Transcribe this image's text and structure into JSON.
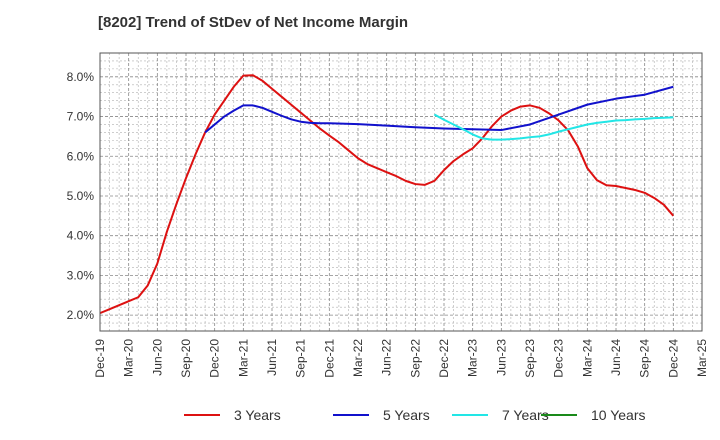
{
  "chart_data": {
    "type": "line",
    "title": "[8202]  Trend of StDev of Net Income Margin",
    "xlabel": "",
    "ylabel": "",
    "x_ticks": [
      "Dec-19",
      "Mar-20",
      "Jun-20",
      "Sep-20",
      "Dec-20",
      "Mar-21",
      "Jun-21",
      "Sep-21",
      "Dec-21",
      "Mar-22",
      "Jun-22",
      "Sep-22",
      "Dec-22",
      "Mar-23",
      "Jun-23",
      "Sep-23",
      "Dec-23",
      "Mar-24",
      "Jun-24",
      "Sep-24",
      "Dec-24",
      "Mar-25"
    ],
    "y_ticks": [
      "2.0%",
      "3.0%",
      "4.0%",
      "5.0%",
      "6.0%",
      "7.0%",
      "8.0%"
    ],
    "ylim": [
      1.6,
      8.6
    ],
    "grid": true,
    "legend_position": "bottom",
    "series": [
      {
        "name": "3 Years",
        "color": "#dd1111",
        "points": [
          [
            "Dec-19",
            2.05
          ],
          [
            "Jan-20",
            2.15
          ],
          [
            "Feb-20",
            2.25
          ],
          [
            "Mar-20",
            2.35
          ],
          [
            "Apr-20",
            2.45
          ],
          [
            "May-20",
            2.75
          ],
          [
            "Jun-20",
            3.3
          ],
          [
            "Jul-20",
            4.1
          ],
          [
            "Aug-20",
            4.8
          ],
          [
            "Sep-20",
            5.45
          ],
          [
            "Oct-20",
            6.05
          ],
          [
            "Nov-20",
            6.6
          ],
          [
            "Dec-20",
            7.05
          ],
          [
            "Jan-21",
            7.4
          ],
          [
            "Feb-21",
            7.75
          ],
          [
            "Mar-21",
            8.03
          ],
          [
            "Apr-21",
            8.04
          ],
          [
            "May-21",
            7.9
          ],
          [
            "Jun-21",
            7.7
          ],
          [
            "Jul-21",
            7.5
          ],
          [
            "Aug-21",
            7.3
          ],
          [
            "Sep-21",
            7.1
          ],
          [
            "Oct-21",
            6.9
          ],
          [
            "Nov-21",
            6.7
          ],
          [
            "Dec-21",
            6.52
          ],
          [
            "Jan-22",
            6.35
          ],
          [
            "Feb-22",
            6.15
          ],
          [
            "Mar-22",
            5.95
          ],
          [
            "Apr-22",
            5.8
          ],
          [
            "May-22",
            5.7
          ],
          [
            "Jun-22",
            5.6
          ],
          [
            "Jul-22",
            5.5
          ],
          [
            "Aug-22",
            5.38
          ],
          [
            "Sep-22",
            5.3
          ],
          [
            "Oct-22",
            5.28
          ],
          [
            "Nov-22",
            5.38
          ],
          [
            "Dec-22",
            5.65
          ],
          [
            "Jan-23",
            5.88
          ],
          [
            "Feb-23",
            6.05
          ],
          [
            "Mar-23",
            6.2
          ],
          [
            "Apr-23",
            6.45
          ],
          [
            "May-23",
            6.75
          ],
          [
            "Jun-23",
            7.0
          ],
          [
            "Jul-23",
            7.15
          ],
          [
            "Aug-23",
            7.25
          ],
          [
            "Sep-23",
            7.28
          ],
          [
            "Oct-23",
            7.22
          ],
          [
            "Nov-23",
            7.08
          ],
          [
            "Dec-23",
            6.9
          ],
          [
            "Jan-24",
            6.65
          ],
          [
            "Feb-24",
            6.25
          ],
          [
            "Mar-24",
            5.7
          ],
          [
            "Apr-24",
            5.4
          ],
          [
            "May-24",
            5.27
          ],
          [
            "Jun-24",
            5.25
          ],
          [
            "Jul-24",
            5.2
          ],
          [
            "Aug-24",
            5.15
          ],
          [
            "Sep-24",
            5.08
          ],
          [
            "Oct-24",
            4.95
          ],
          [
            "Nov-24",
            4.78
          ],
          [
            "Dec-24",
            4.5
          ]
        ]
      },
      {
        "name": "5 Years",
        "color": "#1111cc",
        "points": [
          [
            "Nov-20",
            6.6
          ],
          [
            "Dec-20",
            6.8
          ],
          [
            "Jan-21",
            7.0
          ],
          [
            "Feb-21",
            7.15
          ],
          [
            "Mar-21",
            7.28
          ],
          [
            "Apr-21",
            7.28
          ],
          [
            "May-21",
            7.22
          ],
          [
            "Jun-21",
            7.12
          ],
          [
            "Jul-21",
            7.02
          ],
          [
            "Aug-21",
            6.93
          ],
          [
            "Sep-21",
            6.87
          ],
          [
            "Oct-21",
            6.84
          ],
          [
            "Nov-21",
            6.83
          ],
          [
            "Dec-21",
            6.83
          ],
          [
            "Mar-22",
            6.81
          ],
          [
            "Jun-22",
            6.77
          ],
          [
            "Sep-22",
            6.73
          ],
          [
            "Dec-22",
            6.7
          ],
          [
            "Mar-23",
            6.68
          ],
          [
            "Jun-23",
            6.66
          ],
          [
            "Sep-23",
            6.8
          ],
          [
            "Dec-23",
            7.05
          ],
          [
            "Mar-24",
            7.3
          ],
          [
            "Jun-24",
            7.45
          ],
          [
            "Sep-24",
            7.55
          ],
          [
            "Dec-24",
            7.75
          ]
        ]
      },
      {
        "name": "7 Years",
        "color": "#22e6e6",
        "points": [
          [
            "Nov-22",
            7.05
          ],
          [
            "Dec-22",
            6.92
          ],
          [
            "Jan-23",
            6.8
          ],
          [
            "Feb-23",
            6.68
          ],
          [
            "Mar-23",
            6.55
          ],
          [
            "Apr-23",
            6.45
          ],
          [
            "May-23",
            6.42
          ],
          [
            "Jun-23",
            6.42
          ],
          [
            "Jul-23",
            6.43
          ],
          [
            "Aug-23",
            6.45
          ],
          [
            "Sep-23",
            6.48
          ],
          [
            "Oct-23",
            6.5
          ],
          [
            "Nov-23",
            6.55
          ],
          [
            "Dec-23",
            6.62
          ],
          [
            "Jan-24",
            6.68
          ],
          [
            "Feb-24",
            6.74
          ],
          [
            "Mar-24",
            6.8
          ],
          [
            "Apr-24",
            6.84
          ],
          [
            "May-24",
            6.87
          ],
          [
            "Jun-24",
            6.9
          ],
          [
            "Jul-24",
            6.91
          ],
          [
            "Aug-24",
            6.93
          ],
          [
            "Sep-24",
            6.94
          ],
          [
            "Oct-24",
            6.96
          ],
          [
            "Nov-24",
            6.97
          ],
          [
            "Dec-24",
            6.98
          ]
        ]
      },
      {
        "name": "10 Years",
        "color": "#1a8a1a",
        "points": []
      }
    ]
  }
}
